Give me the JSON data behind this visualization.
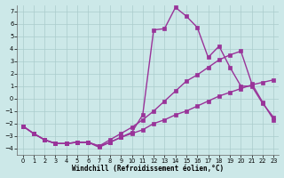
{
  "xlabel": "Windchill (Refroidissement éolien,°C)",
  "xlim": [
    -0.5,
    23.5
  ],
  "ylim": [
    -4.5,
    7.5
  ],
  "xticks": [
    0,
    1,
    2,
    3,
    4,
    5,
    6,
    7,
    8,
    9,
    10,
    11,
    12,
    13,
    14,
    15,
    16,
    17,
    18,
    19,
    20,
    21,
    22,
    23
  ],
  "yticks": [
    -4,
    -3,
    -2,
    -1,
    0,
    1,
    2,
    3,
    4,
    5,
    6,
    7
  ],
  "bg_color": "#cce8e8",
  "grid_color": "#aacccc",
  "line_color": "#993399",
  "line1_x": [
    0,
    1,
    2,
    3,
    4,
    5,
    6,
    7,
    8,
    9,
    10,
    11,
    12,
    13,
    14,
    15,
    16,
    17,
    18,
    19,
    20,
    21,
    22,
    23
  ],
  "line1_y": [
    -2.2,
    -2.8,
    -3.3,
    -3.6,
    -3.6,
    -3.5,
    -3.5,
    -3.8,
    -3.5,
    -3.1,
    -2.8,
    -2.5,
    -2.0,
    -1.7,
    -1.3,
    -1.0,
    -0.6,
    -0.2,
    0.2,
    0.5,
    0.8,
    1.1,
    1.3,
    1.5
  ],
  "line2_x": [
    0,
    1,
    2,
    3,
    4,
    5,
    6,
    7,
    8,
    9,
    10,
    11,
    12,
    13,
    14,
    15,
    16,
    17,
    18,
    19,
    20,
    21,
    22,
    23
  ],
  "line2_y": [
    -2.2,
    -2.8,
    -3.3,
    -3.6,
    -3.6,
    -3.5,
    -3.5,
    -3.8,
    -3.3,
    -2.8,
    -2.3,
    -1.7,
    -1.0,
    -0.2,
    0.6,
    1.4,
    1.9,
    2.5,
    3.1,
    3.5,
    3.8,
    1.2,
    -0.3,
    -1.7
  ],
  "line3_x": [
    0,
    1,
    2,
    3,
    4,
    5,
    6,
    7,
    8,
    9,
    10,
    11,
    12,
    13,
    14,
    15,
    16,
    17,
    18,
    19,
    20,
    21,
    22,
    23
  ],
  "line3_y": [
    -2.2,
    -2.8,
    -3.3,
    -3.6,
    -3.6,
    -3.5,
    -3.5,
    -3.9,
    -3.5,
    -3.1,
    -2.7,
    -1.3,
    5.5,
    5.6,
    7.3,
    6.6,
    5.7,
    3.3,
    4.2,
    2.5,
    1.0,
    1.0,
    -0.4,
    -1.5
  ],
  "marker": "D",
  "markersize": 2.5,
  "linewidth": 1.0
}
